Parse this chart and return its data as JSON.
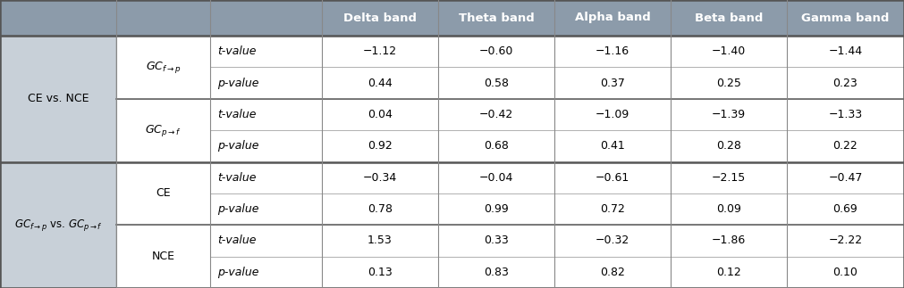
{
  "header_bg": "#8c9baa",
  "group_col_bg": "#c8d0d8",
  "white": "#ffffff",
  "border_thin": "#aaaaaa",
  "border_thick": "#777777",
  "col_headers": [
    "Delta band",
    "Theta band",
    "Alpha band",
    "Beta band",
    "Gamma band"
  ],
  "groups": [
    {
      "label": "CE vs. NCE",
      "subgroups": [
        {
          "label_type": "GCfp",
          "rows": [
            {
              "stat": "t-value",
              "italic_stat": true,
              "values": [
                "−1.12",
                "−0.60",
                "−1.16",
                "−1.40",
                "−1.44"
              ]
            },
            {
              "stat": "p-value",
              "italic_stat": true,
              "values": [
                "0.44",
                "0.58",
                "0.37",
                "0.25",
                "0.23"
              ]
            }
          ]
        },
        {
          "label_type": "GCpf",
          "rows": [
            {
              "stat": "t-value",
              "italic_stat": true,
              "values": [
                "0.04",
                "−0.42",
                "−1.09",
                "−1.39",
                "−1.33"
              ]
            },
            {
              "stat": "p-value",
              "italic_stat": true,
              "values": [
                "0.92",
                "0.68",
                "0.41",
                "0.28",
                "0.22"
              ]
            }
          ]
        }
      ]
    },
    {
      "label": "GCfp_vs_GCpf",
      "subgroups": [
        {
          "label_type": "CE",
          "rows": [
            {
              "stat": "t-value",
              "italic_stat": true,
              "values": [
                "−0.34",
                "−0.04",
                "−0.61",
                "−2.15",
                "−0.47"
              ]
            },
            {
              "stat": "p-value",
              "italic_stat": true,
              "values": [
                "0.78",
                "0.99",
                "0.72",
                "0.09",
                "0.69"
              ]
            }
          ]
        },
        {
          "label_type": "NCE",
          "rows": [
            {
              "stat": "t-value",
              "italic_stat": true,
              "values": [
                "1.53",
                "0.33",
                "−0.32",
                "−1.86",
                "−2.22"
              ]
            },
            {
              "stat": "p-value",
              "italic_stat": true,
              "values": [
                "0.13",
                "0.83",
                "0.82",
                "0.12",
                "0.10"
              ]
            }
          ]
        }
      ]
    }
  ]
}
